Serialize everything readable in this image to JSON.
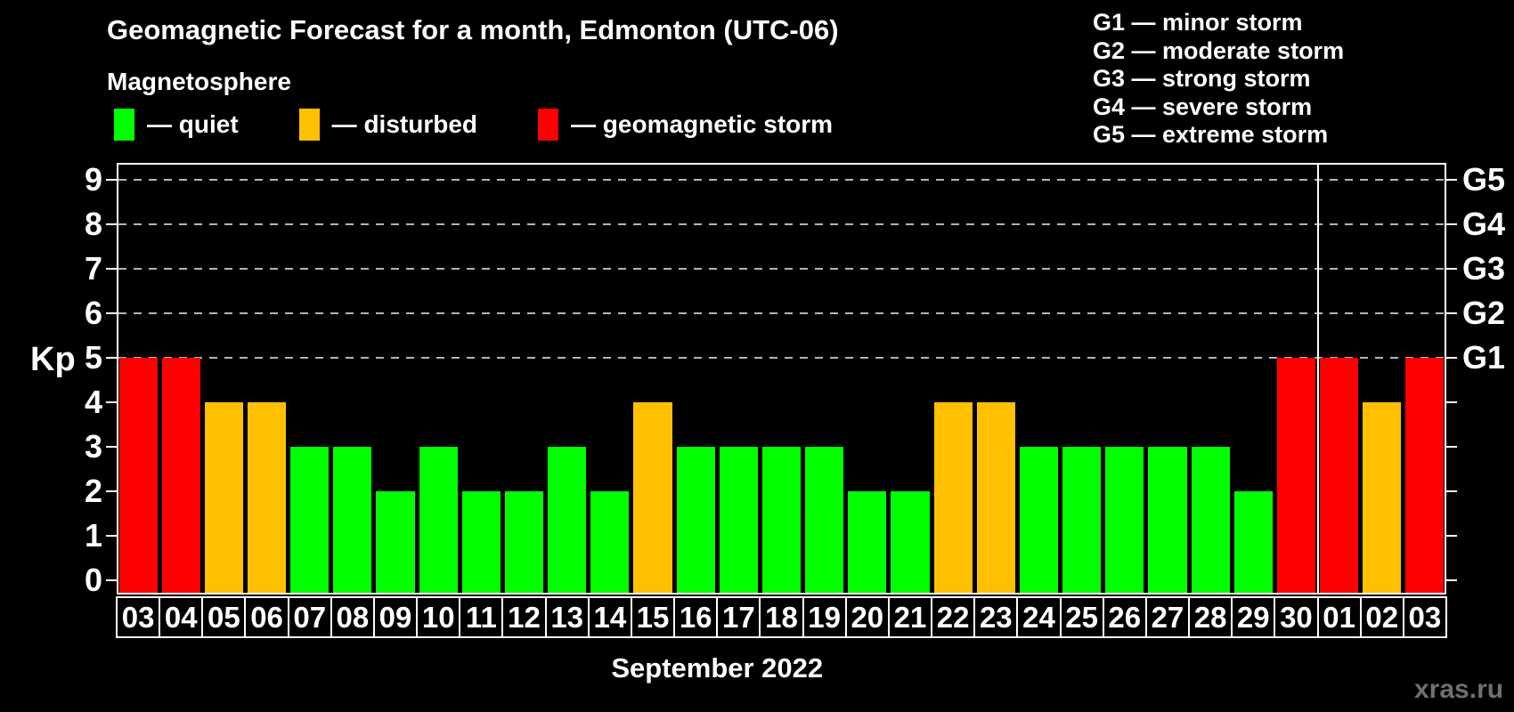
{
  "title": "Geomagnetic Forecast for a month, Edmonton (UTC-06)",
  "subtitle": "Magnetosphere",
  "legend": {
    "items": [
      {
        "name": "quiet",
        "label": "— quiet",
        "color": "#00ff00"
      },
      {
        "name": "disturbed",
        "label": "— disturbed",
        "color": "#ffc000"
      },
      {
        "name": "geomagnetic-storm",
        "label": "— geomagnetic storm",
        "color": "#ff0000"
      }
    ]
  },
  "storm_legend": [
    "G1 — minor storm",
    "G2 — moderate storm",
    "G3 — strong storm",
    "G4 — severe storm",
    "G5 — extreme storm"
  ],
  "watermark": "xras.ru",
  "chart_data": {
    "type": "bar",
    "title": "Geomagnetic Forecast for a month, Edmonton (UTC-06)",
    "xlabel": "September 2022",
    "ylabel": "Kp",
    "ylim": [
      0,
      9
    ],
    "yticks": [
      0,
      1,
      2,
      3,
      4,
      5,
      6,
      7,
      8,
      9
    ],
    "gridlines_at": [
      5,
      6,
      7,
      8,
      9
    ],
    "grid": true,
    "legend_position": "top",
    "right_axis": [
      {
        "kp": 5,
        "label": "G1"
      },
      {
        "kp": 6,
        "label": "G2"
      },
      {
        "kp": 7,
        "label": "G3"
      },
      {
        "kp": 8,
        "label": "G4"
      },
      {
        "kp": 9,
        "label": "G5"
      }
    ],
    "categories": [
      "03",
      "04",
      "05",
      "06",
      "07",
      "08",
      "09",
      "10",
      "11",
      "12",
      "13",
      "14",
      "15",
      "16",
      "17",
      "18",
      "19",
      "20",
      "21",
      "22",
      "23",
      "24",
      "25",
      "26",
      "27",
      "28",
      "29",
      "30",
      "01",
      "02",
      "03"
    ],
    "values": [
      5,
      5,
      4,
      4,
      3,
      3,
      2,
      3,
      2,
      2,
      3,
      2,
      4,
      3,
      3,
      3,
      3,
      2,
      2,
      4,
      4,
      3,
      3,
      3,
      3,
      3,
      2,
      5,
      5,
      4,
      5
    ],
    "statuses": [
      "geomagnetic storm",
      "geomagnetic storm",
      "disturbed",
      "disturbed",
      "quiet",
      "quiet",
      "quiet",
      "quiet",
      "quiet",
      "quiet",
      "quiet",
      "quiet",
      "disturbed",
      "quiet",
      "quiet",
      "quiet",
      "quiet",
      "quiet",
      "quiet",
      "disturbed",
      "disturbed",
      "quiet",
      "quiet",
      "quiet",
      "quiet",
      "quiet",
      "quiet",
      "geomagnetic storm",
      "geomagnetic storm",
      "disturbed",
      "geomagnetic storm"
    ],
    "status_colors": {
      "quiet": "#00ff00",
      "disturbed": "#ffc000",
      "geomagnetic storm": "#ff0000"
    },
    "month_separator_after_index": 27
  }
}
